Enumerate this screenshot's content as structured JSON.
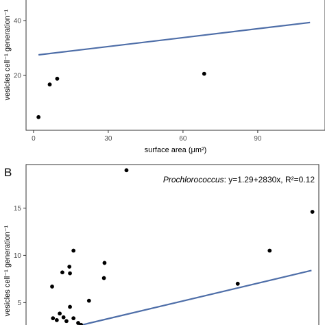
{
  "chart_data": [
    {
      "type": "scatter",
      "panel": "",
      "xlabel": "surface area (μm²)",
      "ylabel": "vesicles cell⁻¹ generation⁻¹",
      "xlim": [
        -3,
        117
      ],
      "ylim": [
        0,
        48
      ],
      "xticks": [
        0,
        30,
        60,
        90
      ],
      "yticks": [
        20,
        40
      ],
      "annotation": "",
      "points": [
        {
          "x": 2,
          "y": 4.8
        },
        {
          "x": 6.5,
          "y": 16.7
        },
        {
          "x": 9.5,
          "y": 18.8
        },
        {
          "x": 68.5,
          "y": 20.6
        }
      ],
      "fit": {
        "x0": 2,
        "y0": 27.5,
        "x1": 111,
        "y1": 39.3,
        "color": "#4e6ea8"
      }
    },
    {
      "type": "scatter",
      "panel": "B",
      "xlabel": "",
      "ylabel": "vesicles cell⁻¹ generation⁻¹",
      "xlim": [
        0,
        1
      ],
      "ylim": [
        2.2,
        19.6
      ],
      "xticks": [],
      "yticks": [
        5,
        10,
        15
      ],
      "annotation": {
        "organism": "Prochlorococcus",
        "equation": ": y=1.29+2830x, R²=0.12"
      },
      "points": [
        {
          "x": 0.092,
          "y": 3.35
        },
        {
          "x": 0.105,
          "y": 3.15
        },
        {
          "x": 0.115,
          "y": 3.85
        },
        {
          "x": 0.128,
          "y": 3.45
        },
        {
          "x": 0.138,
          "y": 3.05
        },
        {
          "x": 0.15,
          "y": 4.55
        },
        {
          "x": 0.162,
          "y": 3.35
        },
        {
          "x": 0.178,
          "y": 2.85
        },
        {
          "x": 0.188,
          "y": 2.65
        },
        {
          "x": 0.089,
          "y": 6.7
        },
        {
          "x": 0.124,
          "y": 8.2
        },
        {
          "x": 0.148,
          "y": 8.8
        },
        {
          "x": 0.15,
          "y": 8.1
        },
        {
          "x": 0.162,
          "y": 10.5
        },
        {
          "x": 0.215,
          "y": 5.2
        },
        {
          "x": 0.266,
          "y": 7.6
        },
        {
          "x": 0.268,
          "y": 9.2
        },
        {
          "x": 0.343,
          "y": 19.0
        },
        {
          "x": 0.723,
          "y": 7.0
        },
        {
          "x": 0.832,
          "y": 10.5
        },
        {
          "x": 0.978,
          "y": 14.6
        }
      ],
      "fit": {
        "x0": 0.13,
        "y0": 2.2,
        "x1": 0.975,
        "y1": 8.4,
        "color": "#4e6ea8"
      }
    }
  ]
}
